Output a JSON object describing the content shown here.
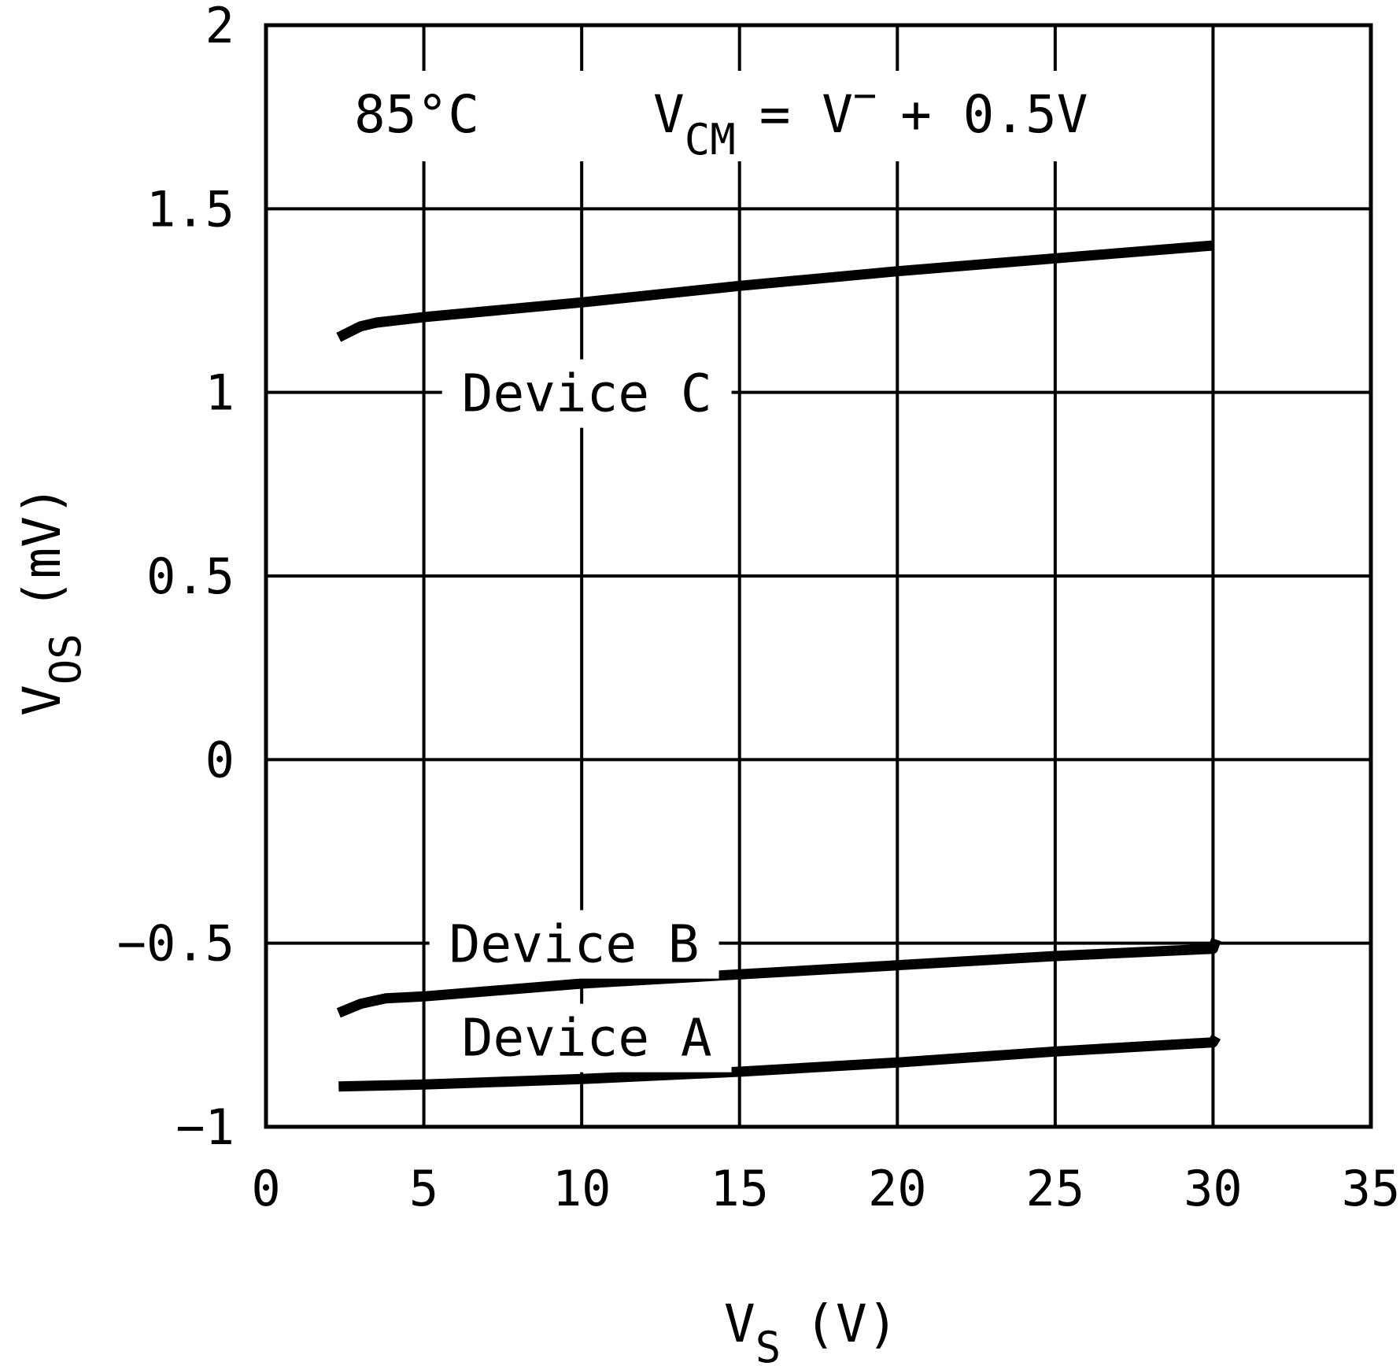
{
  "chart_data": {
    "type": "line",
    "xlabel": "V",
    "xlabel_sub": "S",
    "xlabel_unit": "(V)",
    "ylabel": "V",
    "ylabel_sub": "OS",
    "ylabel_unit": "(mV)",
    "xlim": [
      0,
      35
    ],
    "ylim": [
      -1,
      2
    ],
    "xticks": [
      0,
      5,
      10,
      15,
      20,
      25,
      30,
      35
    ],
    "xtick_labels": [
      "0",
      "5",
      "10",
      "15",
      "20",
      "25",
      "30",
      "35"
    ],
    "yticks": [
      -1,
      -0.5,
      0,
      0.5,
      1,
      1.5,
      2
    ],
    "ytick_labels": [
      "−1",
      "−0.5",
      "0",
      "0.5",
      "1",
      "1.5",
      "2"
    ],
    "grid": true,
    "line_color": "#000000",
    "annotations": {
      "temperature": "85°C",
      "vcm_main": "V",
      "vcm_sub": "CM",
      "vcm_eq": "= V",
      "vcm_sup": "−",
      "vcm_rest": "+ 0.5V"
    },
    "series": [
      {
        "name": "Device C",
        "x": [
          2.3,
          3.0,
          3.5,
          5,
          10,
          15,
          20,
          25,
          30
        ],
        "y": [
          1.15,
          1.18,
          1.19,
          1.205,
          1.245,
          1.29,
          1.33,
          1.365,
          1.4
        ]
      },
      {
        "name": "Device B",
        "x": [
          2.3,
          3.0,
          3.8,
          5,
          10,
          15,
          20,
          25,
          30,
          30.1
        ],
        "y": [
          -0.69,
          -0.665,
          -0.65,
          -0.645,
          -0.61,
          -0.585,
          -0.56,
          -0.535,
          -0.515,
          -0.49
        ]
      },
      {
        "name": "Device A",
        "x": [
          2.3,
          5,
          10,
          15,
          20,
          25,
          30,
          30.1
        ],
        "y": [
          -0.89,
          -0.885,
          -0.87,
          -0.85,
          -0.825,
          -0.795,
          -0.77,
          -0.755
        ]
      }
    ]
  }
}
